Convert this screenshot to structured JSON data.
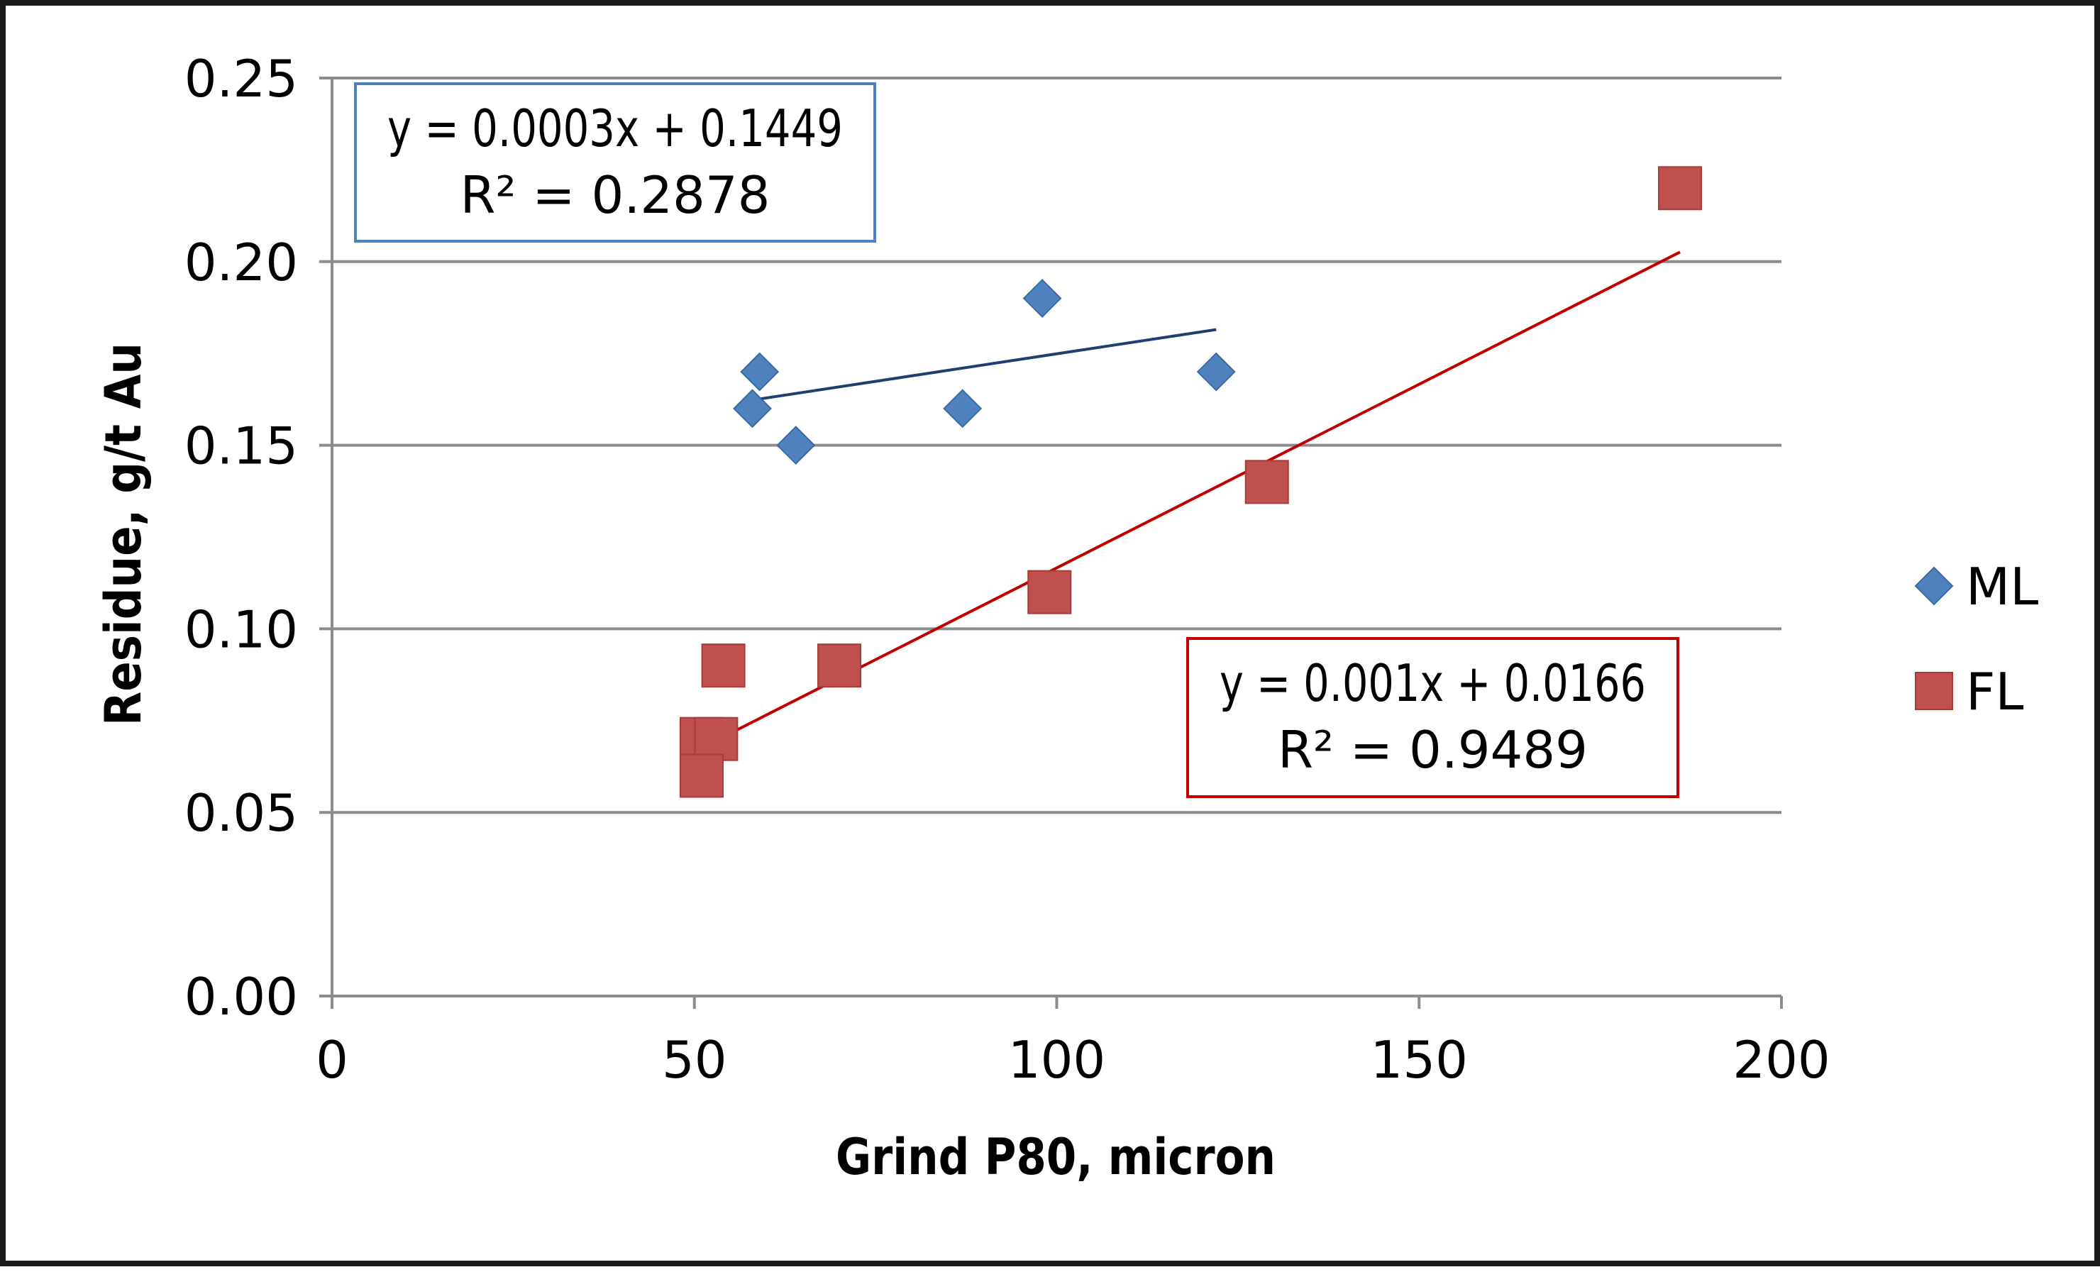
{
  "chart_data": {
    "type": "scatter",
    "title": "",
    "xlabel": "Grind P80, micron",
    "ylabel": "Residue, g/t Au",
    "xlim": [
      0,
      200
    ],
    "ylim": [
      0,
      0.25
    ],
    "xticks": [
      0,
      50,
      100,
      150,
      200
    ],
    "yticks": [
      0.0,
      0.05,
      0.1,
      0.15,
      0.2,
      0.25
    ],
    "xtick_labels": [
      "0",
      "50",
      "100",
      "150",
      "200"
    ],
    "ytick_labels": [
      "0.00",
      "0.05",
      "0.10",
      "0.15",
      "0.20",
      "0.25"
    ],
    "grid": "horizontal",
    "legend": "right",
    "series": [
      {
        "name": "ML",
        "marker": "diamond",
        "color": "#4F81BD",
        "points": [
          {
            "x": 59,
            "y": 0.17
          },
          {
            "x": 58,
            "y": 0.16
          },
          {
            "x": 64,
            "y": 0.15
          },
          {
            "x": 87,
            "y": 0.16
          },
          {
            "x": 98,
            "y": 0.19
          },
          {
            "x": 122,
            "y": 0.17
          }
        ],
        "trendline": {
          "x_range": [
            58,
            122
          ],
          "slope": 0.0003,
          "intercept": 0.1449,
          "color": "#1F3F6E",
          "equation": "y = 0.0003x + 0.1449",
          "r_squared": "R² = 0.2878",
          "box_color": "#4F81BD",
          "box_position": "top-left"
        }
      },
      {
        "name": "FL",
        "marker": "square",
        "color": "#C0504D",
        "points": [
          {
            "x": 54,
            "y": 0.09
          },
          {
            "x": 51,
            "y": 0.07
          },
          {
            "x": 53,
            "y": 0.07
          },
          {
            "x": 51,
            "y": 0.06
          },
          {
            "x": 70,
            "y": 0.09
          },
          {
            "x": 99,
            "y": 0.11
          },
          {
            "x": 129,
            "y": 0.14
          },
          {
            "x": 186,
            "y": 0.22
          }
        ],
        "trendline": {
          "x_range": [
            51,
            186
          ],
          "slope": 0.001,
          "intercept": 0.0166,
          "color": "#C00000",
          "equation": "y = 0.001x + 0.0166",
          "r_squared": "R² = 0.9489",
          "box_color": "#C00000",
          "box_position": "bottom-right"
        }
      }
    ]
  }
}
